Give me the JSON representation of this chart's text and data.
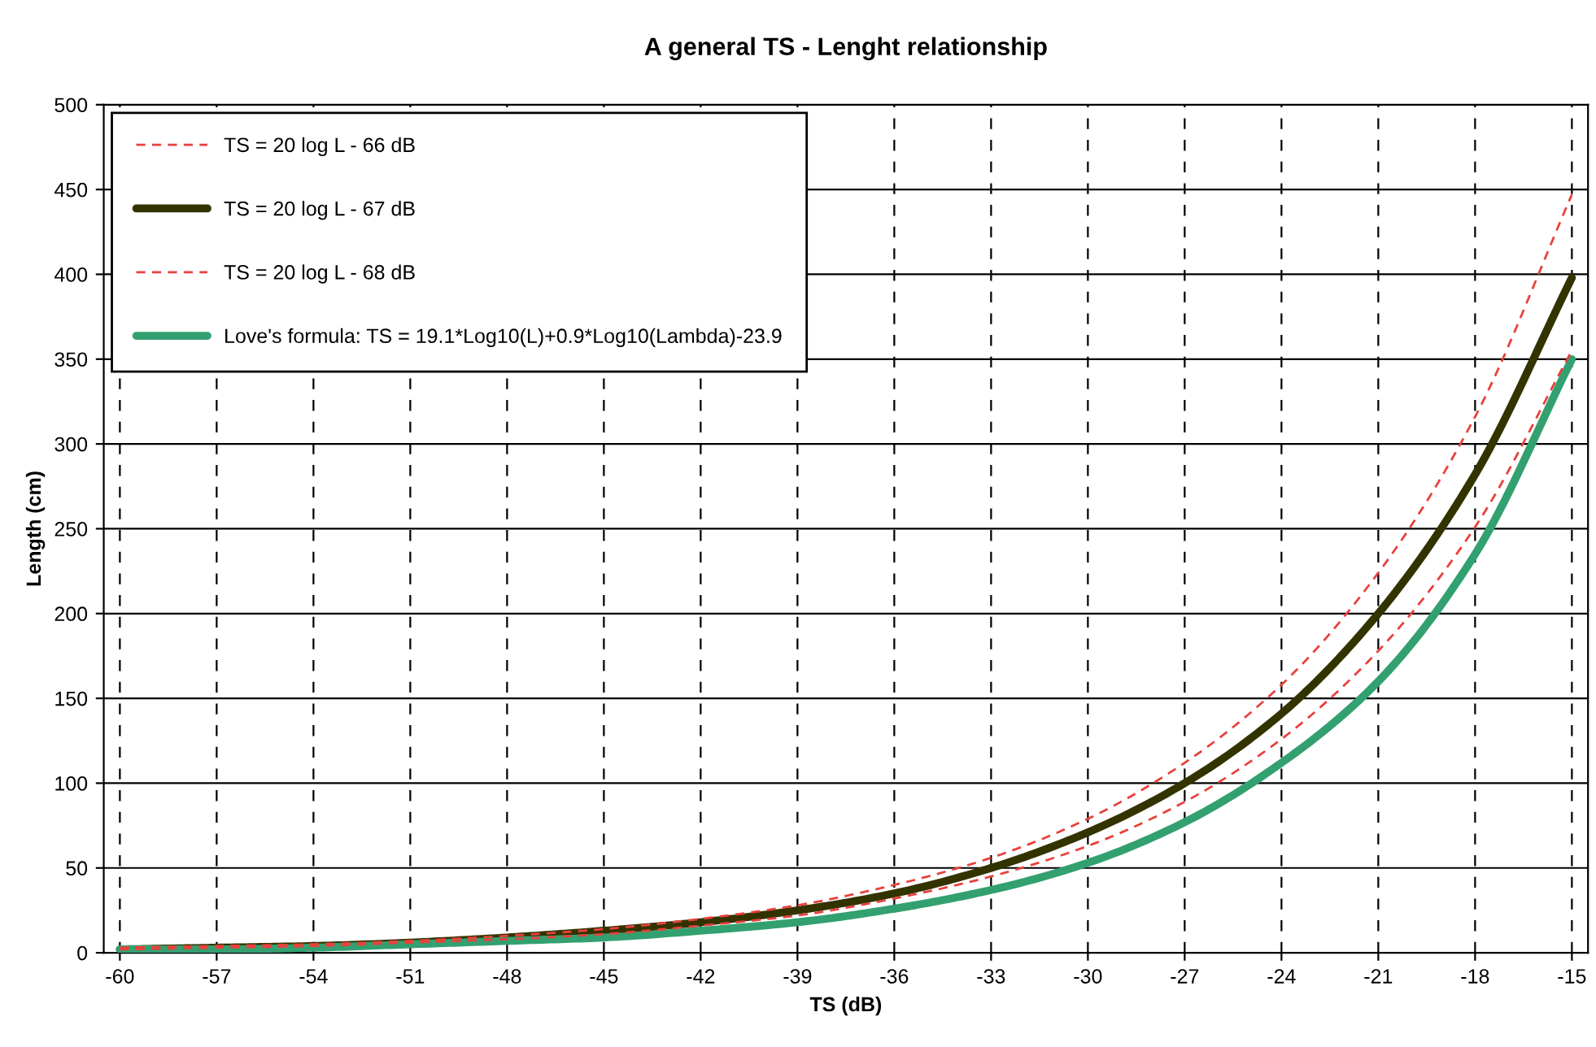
{
  "chart_data": {
    "type": "line",
    "title": "A general TS - Lenght relationship",
    "xlabel": "TS (dB)",
    "ylabel": "Length (cm)",
    "x": [
      -60,
      -57,
      -54,
      -51,
      -48,
      -45,
      -42,
      -39,
      -36,
      -33,
      -30,
      -27,
      -24,
      -21,
      -18,
      -15
    ],
    "xlim": [
      -60.5,
      -14.5
    ],
    "xticks": [
      -60,
      -57,
      -54,
      -51,
      -48,
      -45,
      -42,
      -39,
      -36,
      -33,
      -30,
      -27,
      -24,
      -21,
      -18,
      -15
    ],
    "ylim": [
      0,
      500
    ],
    "yticks": [
      0,
      50,
      100,
      150,
      200,
      250,
      300,
      350,
      400,
      450,
      500
    ],
    "grid": true,
    "legend": "top left",
    "marker": "none",
    "series": [
      {
        "name": "TS = 20 log L - 66 dB",
        "color": "#e8413c",
        "line_style": "dashed",
        "values": [
          2,
          3,
          4,
          6,
          8,
          11,
          16,
          22,
          32,
          45,
          63,
          89,
          126,
          178,
          251,
          355
        ]
      },
      {
        "name": "TS = 20 log L - 67 dB",
        "color": "#333300",
        "line_style": "solid",
        "values": [
          2,
          3,
          4,
          6,
          9,
          13,
          18,
          25,
          35,
          50,
          71,
          100,
          141,
          200,
          282,
          398
        ]
      },
      {
        "name": "TS = 20 log L - 68 dB",
        "color": "#e8413c",
        "line_style": "dashed",
        "values": [
          3,
          4,
          5,
          7,
          10,
          14,
          20,
          28,
          40,
          56,
          79,
          112,
          158,
          224,
          316,
          447
        ]
      },
      {
        "name": "Love's formula: TS = 19.1*Log10(L)+0.9*Log10(Lambda)-23.9",
        "color": "#33a070",
        "line_style": "solid",
        "values": [
          2,
          2,
          3,
          5,
          7,
          9,
          13,
          18,
          26,
          37,
          53,
          77,
          112,
          160,
          235,
          350
        ]
      }
    ]
  }
}
